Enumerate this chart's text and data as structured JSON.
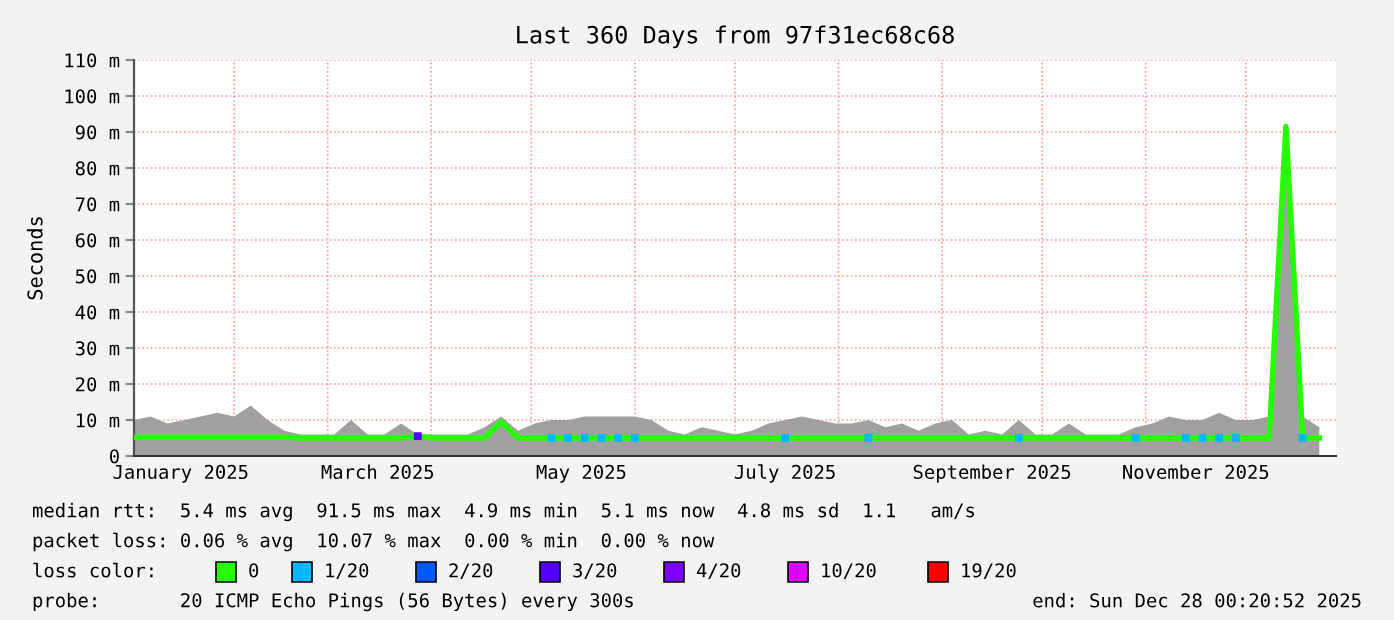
{
  "chart_data": {
    "type": "line",
    "title": "Last 360 Days from 97f31ec68c68",
    "ylabel": "Seconds",
    "x": [
      "2025-01-02",
      "2025-01-07",
      "2025-01-12",
      "2025-01-17",
      "2025-01-22",
      "2025-01-27",
      "2025-02-01",
      "2025-02-06",
      "2025-02-11",
      "2025-02-16",
      "2025-02-21",
      "2025-02-26",
      "2025-03-03",
      "2025-03-08",
      "2025-03-13",
      "2025-03-18",
      "2025-03-23",
      "2025-03-28",
      "2025-04-02",
      "2025-04-07",
      "2025-04-12",
      "2025-04-17",
      "2025-04-22",
      "2025-04-27",
      "2025-05-02",
      "2025-05-07",
      "2025-05-12",
      "2025-05-17",
      "2025-05-22",
      "2025-05-27",
      "2025-06-01",
      "2025-06-06",
      "2025-06-11",
      "2025-06-16",
      "2025-06-21",
      "2025-06-26",
      "2025-07-01",
      "2025-07-06",
      "2025-07-11",
      "2025-07-16",
      "2025-07-21",
      "2025-07-26",
      "2025-07-31",
      "2025-08-05",
      "2025-08-10",
      "2025-08-15",
      "2025-08-20",
      "2025-08-25",
      "2025-08-30",
      "2025-09-04",
      "2025-09-09",
      "2025-09-14",
      "2025-09-19",
      "2025-09-24",
      "2025-09-29",
      "2025-10-04",
      "2025-10-09",
      "2025-10-14",
      "2025-10-19",
      "2025-10-24",
      "2025-10-29",
      "2025-11-03",
      "2025-11-08",
      "2025-11-13",
      "2025-11-18",
      "2025-11-23",
      "2025-11-28",
      "2025-12-03",
      "2025-12-08",
      "2025-12-13",
      "2025-12-18",
      "2025-12-23"
    ],
    "series": [
      {
        "type": "area",
        "color": "#a0a0a0",
        "values": [
          10,
          11,
          9,
          10,
          11,
          12,
          11,
          14,
          10,
          7,
          6,
          6,
          6,
          10,
          6,
          6,
          9,
          6,
          6,
          6,
          6,
          8,
          11,
          7,
          9,
          10,
          10,
          11,
          11,
          11,
          11,
          10,
          7,
          6,
          8,
          7,
          6,
          7,
          9,
          10,
          11,
          10,
          9,
          9,
          10,
          8,
          9,
          7,
          9,
          10,
          6,
          7,
          6,
          10,
          6,
          6,
          9,
          6,
          6,
          6,
          8,
          9,
          11,
          10,
          10,
          12,
          10,
          10,
          11,
          92,
          11,
          8
        ]
      },
      {
        "name": "0",
        "color": "#26ff00",
        "values": [
          5.2,
          5.2,
          5.2,
          5.2,
          5.2,
          5.2,
          5.2,
          5.2,
          5.2,
          5.2,
          5,
          5,
          5,
          5,
          5,
          5,
          5,
          5.5,
          5,
          5,
          5,
          5,
          9.5,
          5,
          5,
          5,
          5,
          5,
          5,
          5,
          5,
          5,
          5,
          5,
          5,
          5,
          5,
          5,
          5,
          5,
          5,
          5,
          5,
          5,
          5,
          5,
          5,
          5,
          5,
          5,
          5,
          5,
          5,
          5,
          5,
          5,
          5,
          5,
          5,
          5,
          5,
          5,
          5,
          5,
          5,
          5,
          5,
          5,
          5,
          91.5,
          5,
          5
        ]
      },
      {
        "name": "1/20",
        "type": "scatter",
        "marker": "square",
        "color": "#00b8ff",
        "values": [
          null,
          null,
          null,
          null,
          null,
          null,
          null,
          null,
          null,
          null,
          null,
          null,
          null,
          null,
          null,
          null,
          null,
          null,
          null,
          null,
          null,
          null,
          null,
          null,
          null,
          5,
          5,
          5,
          5,
          5,
          5,
          null,
          null,
          null,
          null,
          null,
          null,
          null,
          null,
          5,
          null,
          null,
          null,
          null,
          5,
          null,
          null,
          null,
          null,
          null,
          null,
          null,
          null,
          5,
          null,
          null,
          null,
          null,
          null,
          null,
          5,
          null,
          null,
          5,
          5,
          5,
          5,
          null,
          null,
          null,
          5,
          null
        ]
      },
      {
        "name": "2/20",
        "type": "scatter",
        "marker": "square",
        "color": "#0059ff",
        "values": [
          null,
          null,
          null,
          null,
          null,
          null,
          null,
          null,
          null,
          null,
          null,
          null,
          null,
          null,
          null,
          null,
          null,
          null,
          null,
          null,
          null,
          null,
          null,
          null,
          null,
          null,
          null,
          null,
          null,
          null,
          null,
          null,
          null,
          null,
          null,
          null,
          null,
          null,
          null,
          null,
          null,
          null,
          null,
          null,
          null,
          null,
          null,
          null,
          null,
          null,
          null,
          null,
          null,
          null,
          null,
          null,
          null,
          null,
          null,
          null,
          null,
          null,
          null,
          null,
          null,
          null,
          null,
          null,
          null,
          null,
          null,
          null
        ]
      },
      {
        "name": "3/20",
        "type": "scatter",
        "marker": "square",
        "color": "#5500ff",
        "values": [
          null,
          null,
          null,
          null,
          null,
          null,
          null,
          null,
          null,
          null,
          null,
          null,
          null,
          null,
          null,
          null,
          null,
          5.5,
          null,
          null,
          null,
          null,
          null,
          null,
          null,
          null,
          null,
          null,
          null,
          null,
          null,
          null,
          null,
          null,
          null,
          null,
          null,
          null,
          null,
          null,
          null,
          null,
          null,
          null,
          null,
          null,
          null,
          null,
          null,
          null,
          null,
          null,
          null,
          null,
          null,
          null,
          null,
          null,
          null,
          null,
          null,
          null,
          null,
          null,
          null,
          null,
          null,
          null,
          null,
          null,
          null,
          null
        ]
      },
      {
        "name": "4/20",
        "type": "scatter",
        "marker": "square",
        "color": "#7e00ff",
        "values": [
          null,
          null,
          null,
          null,
          null,
          null,
          null,
          null,
          null,
          null,
          null,
          null,
          null,
          null,
          null,
          null,
          null,
          null,
          null,
          null,
          null,
          null,
          null,
          null,
          null,
          null,
          null,
          null,
          null,
          null,
          null,
          null,
          null,
          null,
          null,
          null,
          null,
          null,
          null,
          null,
          null,
          null,
          null,
          null,
          null,
          null,
          null,
          null,
          null,
          null,
          null,
          null,
          null,
          null,
          null,
          null,
          null,
          null,
          null,
          null,
          null,
          null,
          null,
          null,
          null,
          null,
          null,
          null,
          null,
          null,
          null,
          null
        ]
      },
      {
        "name": "10/20",
        "type": "scatter",
        "marker": "square",
        "color": "#dd00ff",
        "values": [
          null,
          null,
          null,
          null,
          null,
          null,
          null,
          null,
          null,
          null,
          null,
          null,
          null,
          null,
          null,
          null,
          null,
          null,
          null,
          null,
          null,
          null,
          null,
          null,
          null,
          null,
          null,
          null,
          null,
          null,
          null,
          null,
          null,
          null,
          null,
          null,
          null,
          null,
          null,
          null,
          null,
          null,
          null,
          null,
          null,
          null,
          null,
          null,
          null,
          null,
          null,
          null,
          null,
          null,
          null,
          null,
          null,
          null,
          null,
          null,
          null,
          null,
          null,
          null,
          null,
          null,
          null,
          null,
          null,
          null,
          null,
          null
        ]
      },
      {
        "name": "19/20",
        "type": "scatter",
        "marker": "square",
        "color": "#ff0000",
        "values": [
          null,
          null,
          null,
          null,
          null,
          null,
          null,
          null,
          null,
          null,
          null,
          null,
          null,
          null,
          null,
          null,
          null,
          null,
          null,
          null,
          null,
          null,
          null,
          null,
          null,
          null,
          null,
          null,
          null,
          null,
          null,
          null,
          null,
          null,
          null,
          null,
          null,
          null,
          null,
          null,
          null,
          null,
          null,
          null,
          null,
          null,
          null,
          null,
          null,
          null,
          null,
          null,
          null,
          null,
          null,
          null,
          null,
          null,
          null,
          null,
          null,
          null,
          null,
          null,
          null,
          null,
          null,
          null,
          null,
          null,
          null,
          null
        ]
      }
    ],
    "xlim": [
      "2025-01-02",
      "2025-12-28"
    ],
    "xticks": [
      {
        "value": "2025-02-01",
        "label": null
      },
      {
        "value": "2025-03-01",
        "label": null
      },
      {
        "value": "2025-04-01",
        "label": null
      },
      {
        "value": "2025-05-01",
        "label": null
      },
      {
        "value": "2025-06-01",
        "label": null
      },
      {
        "value": "2025-07-01",
        "label": null
      },
      {
        "value": "2025-08-01",
        "label": null
      },
      {
        "value": "2025-09-01",
        "label": null
      },
      {
        "value": "2025-10-01",
        "label": null
      },
      {
        "value": "2025-11-01",
        "label": null
      },
      {
        "value": "2025-12-01",
        "label": null
      },
      {
        "value": "2025-01-16",
        "label": "January 2025"
      },
      {
        "value": "2025-03-16",
        "label": "March 2025"
      },
      {
        "value": "2025-05-16",
        "label": "May 2025"
      },
      {
        "value": "2025-07-16",
        "label": "July 2025"
      },
      {
        "value": "2025-09-16",
        "label": "September 2025"
      },
      {
        "value": "2025-11-16",
        "label": "November 2025"
      }
    ],
    "ylim": [
      0,
      110
    ],
    "yticks": [
      0,
      {
        "value": 10,
        "label": "10 m"
      },
      {
        "value": 20,
        "label": "20 m"
      },
      {
        "value": 30,
        "label": "30 m"
      },
      {
        "value": 40,
        "label": "40 m"
      },
      {
        "value": 50,
        "label": "50 m"
      },
      {
        "value": 60,
        "label": "60 m"
      },
      {
        "value": 70,
        "label": "70 m"
      },
      {
        "value": 80,
        "label": "80 m"
      },
      {
        "value": 90,
        "label": "90 m"
      },
      {
        "value": 100,
        "label": "100 m"
      },
      {
        "value": 110,
        "label": "110 m"
      }
    ],
    "grid": true,
    "legend": "bottom",
    "legend_title": "loss color:",
    "annotations": [
      "median rtt:  5.4 ms avg  91.5 ms max  4.9 ms min  5.1 ms now  4.8 ms sd  1.1   am/s",
      "packet loss: 0.06 % avg  10.07 % max  0.00 % min  0.00 % now",
      "probe:       20 ICMP Echo Pings (56 Bytes) every 300s",
      "end: Sun Dec 28 00:20:52 2025"
    ]
  }
}
